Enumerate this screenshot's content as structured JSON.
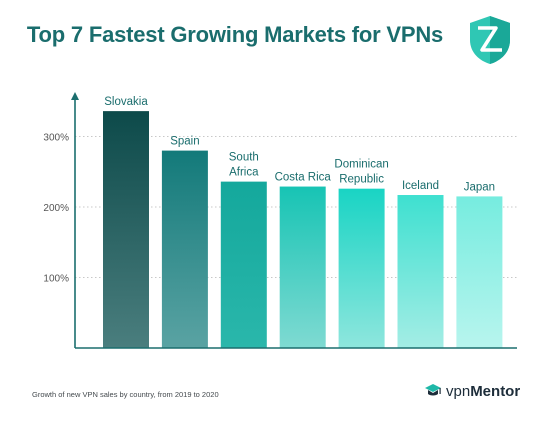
{
  "title": "Top 7 Fastest Growing Markets for VPNs",
  "caption": "Growth of new VPN sales by country, from 2019 to 2020",
  "brand": {
    "part1": "vpn",
    "part2": "Mentor"
  },
  "colors": {
    "title": "#1a6d6d",
    "axis": "#1b6e6e",
    "label": "#1a6d6d",
    "tick": "#555555",
    "grid": "#c8c8c8",
    "bars": [
      [
        "#0d4a4a",
        "#4a7e7e"
      ],
      [
        "#137a7a",
        "#5aa3a3"
      ],
      [
        "#14a89c",
        "#2ab7ab"
      ],
      [
        "#17c4b4",
        "#7fdad2"
      ],
      [
        "#19d4c4",
        "#8ee6dd"
      ],
      [
        "#3ee0d0",
        "#a4ede5"
      ],
      [
        "#76ecdf",
        "#b8f5ee"
      ]
    ]
  },
  "chart_data": {
    "type": "bar",
    "categories": [
      "Slovakia",
      "Spain",
      "South Africa",
      "Costa Rica",
      "Dominican Republic",
      "Iceland",
      "Japan"
    ],
    "category_labels": [
      [
        "Slovakia"
      ],
      [
        "Spain"
      ],
      [
        "South",
        "Africa"
      ],
      [
        "Costa Rica"
      ],
      [
        "Dominican",
        "Republic"
      ],
      [
        "Iceland"
      ],
      [
        "Japan"
      ]
    ],
    "values": [
      336,
      280,
      236,
      229,
      226,
      217,
      215
    ],
    "yticks": [
      100,
      200,
      300
    ],
    "ytick_labels": [
      "100%",
      "200%",
      "300%"
    ],
    "ylim": [
      0,
      370
    ],
    "grid": "dashed horizontal"
  }
}
